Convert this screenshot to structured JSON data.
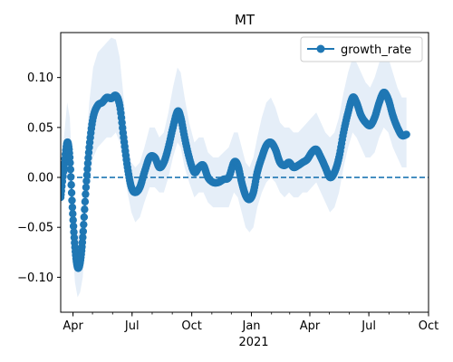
{
  "chart_data": {
    "type": "line",
    "title": "MT",
    "xlabel": "2021",
    "ylabel": "",
    "x_ticks_major": [
      "2020-04-01",
      "2020-07-01",
      "2020-10-01",
      "2021-01-01",
      "2021-04-01",
      "2021-07-01",
      "2021-10-01"
    ],
    "x_tick_labels": [
      "Apr",
      "Jul",
      "Oct",
      "Jan",
      "Apr",
      "Jul",
      "Oct"
    ],
    "x_year_label": "2021",
    "xlim": [
      "2020-03-13",
      "2021-10-01"
    ],
    "ylim": [
      -0.135,
      0.145
    ],
    "y_ticks": [
      -0.1,
      -0.05,
      0.0,
      0.05,
      0.1
    ],
    "y_tick_labels": [
      "−0.10",
      "−0.05",
      "0.00",
      "0.05",
      "0.10"
    ],
    "reference_line": {
      "y": 0.0,
      "style": "dashed"
    },
    "legend": {
      "position": "top-right",
      "entries": [
        "growth_rate"
      ]
    },
    "grid": false,
    "colors": {
      "line": "#1f77b4",
      "band": "#dce8f5"
    },
    "series": [
      {
        "name": "growth_rate",
        "marker": "circle",
        "points": [
          {
            "x": "2020-03-13",
            "y": -0.02,
            "lo": -0.03,
            "hi": -0.005
          },
          {
            "x": "2020-03-18",
            "y": 0.01,
            "lo": -0.01,
            "hi": 0.04
          },
          {
            "x": "2020-03-23",
            "y": 0.035,
            "lo": 0.0,
            "hi": 0.075
          },
          {
            "x": "2020-03-27",
            "y": 0.02,
            "lo": -0.015,
            "hi": 0.06
          },
          {
            "x": "2020-03-31",
            "y": -0.03,
            "lo": -0.065,
            "hi": 0.005
          },
          {
            "x": "2020-04-04",
            "y": -0.07,
            "lo": -0.105,
            "hi": -0.035
          },
          {
            "x": "2020-04-08",
            "y": -0.09,
            "lo": -0.12,
            "hi": -0.06
          },
          {
            "x": "2020-04-12",
            "y": -0.085,
            "lo": -0.115,
            "hi": -0.05
          },
          {
            "x": "2020-04-16",
            "y": -0.06,
            "lo": -0.1,
            "hi": -0.02
          },
          {
            "x": "2020-04-21",
            "y": -0.01,
            "lo": -0.05,
            "hi": 0.03
          },
          {
            "x": "2020-04-26",
            "y": 0.03,
            "lo": -0.01,
            "hi": 0.075
          },
          {
            "x": "2020-05-02",
            "y": 0.06,
            "lo": 0.02,
            "hi": 0.11
          },
          {
            "x": "2020-05-09",
            "y": 0.072,
            "lo": 0.03,
            "hi": 0.125
          },
          {
            "x": "2020-05-16",
            "y": 0.075,
            "lo": 0.035,
            "hi": 0.13
          },
          {
            "x": "2020-05-23",
            "y": 0.08,
            "lo": 0.04,
            "hi": 0.135
          },
          {
            "x": "2020-05-30",
            "y": 0.079,
            "lo": 0.04,
            "hi": 0.14
          },
          {
            "x": "2020-06-06",
            "y": 0.082,
            "lo": 0.045,
            "hi": 0.138
          },
          {
            "x": "2020-06-12",
            "y": 0.072,
            "lo": 0.035,
            "hi": 0.12
          },
          {
            "x": "2020-06-18",
            "y": 0.04,
            "lo": 0.01,
            "hi": 0.08
          },
          {
            "x": "2020-06-24",
            "y": 0.01,
            "lo": -0.015,
            "hi": 0.04
          },
          {
            "x": "2020-06-30",
            "y": -0.01,
            "lo": -0.035,
            "hi": 0.015
          },
          {
            "x": "2020-07-06",
            "y": -0.015,
            "lo": -0.045,
            "hi": 0.01
          },
          {
            "x": "2020-07-13",
            "y": -0.01,
            "lo": -0.04,
            "hi": 0.015
          },
          {
            "x": "2020-07-20",
            "y": 0.005,
            "lo": -0.025,
            "hi": 0.03
          },
          {
            "x": "2020-07-28",
            "y": 0.02,
            "lo": -0.01,
            "hi": 0.05
          },
          {
            "x": "2020-08-05",
            "y": 0.02,
            "lo": -0.01,
            "hi": 0.05
          },
          {
            "x": "2020-08-12",
            "y": 0.01,
            "lo": -0.015,
            "hi": 0.04
          },
          {
            "x": "2020-08-19",
            "y": 0.015,
            "lo": -0.015,
            "hi": 0.045
          },
          {
            "x": "2020-08-26",
            "y": 0.03,
            "lo": 0.0,
            "hi": 0.065
          },
          {
            "x": "2020-09-02",
            "y": 0.05,
            "lo": 0.02,
            "hi": 0.09
          },
          {
            "x": "2020-09-09",
            "y": 0.066,
            "lo": 0.035,
            "hi": 0.11
          },
          {
            "x": "2020-09-14",
            "y": 0.06,
            "lo": 0.03,
            "hi": 0.105
          },
          {
            "x": "2020-09-20",
            "y": 0.04,
            "lo": 0.01,
            "hi": 0.08
          },
          {
            "x": "2020-09-27",
            "y": 0.02,
            "lo": -0.005,
            "hi": 0.055
          },
          {
            "x": "2020-10-05",
            "y": 0.005,
            "lo": -0.02,
            "hi": 0.035
          },
          {
            "x": "2020-10-12",
            "y": 0.01,
            "lo": -0.015,
            "hi": 0.04
          },
          {
            "x": "2020-10-19",
            "y": 0.012,
            "lo": -0.015,
            "hi": 0.04
          },
          {
            "x": "2020-10-26",
            "y": 0.0,
            "lo": -0.025,
            "hi": 0.025
          },
          {
            "x": "2020-11-03",
            "y": -0.005,
            "lo": -0.03,
            "hi": 0.02
          },
          {
            "x": "2020-11-11",
            "y": -0.005,
            "lo": -0.03,
            "hi": 0.02
          },
          {
            "x": "2020-11-19",
            "y": -0.002,
            "lo": -0.03,
            "hi": 0.025
          },
          {
            "x": "2020-11-27",
            "y": 0.0,
            "lo": -0.03,
            "hi": 0.03
          },
          {
            "x": "2020-12-05",
            "y": 0.015,
            "lo": -0.015,
            "hi": 0.045
          },
          {
            "x": "2020-12-11",
            "y": 0.012,
            "lo": -0.02,
            "hi": 0.045
          },
          {
            "x": "2020-12-17",
            "y": -0.005,
            "lo": -0.035,
            "hi": 0.03
          },
          {
            "x": "2020-12-23",
            "y": -0.018,
            "lo": -0.05,
            "hi": 0.015
          },
          {
            "x": "2020-12-29",
            "y": -0.022,
            "lo": -0.055,
            "hi": 0.01
          },
          {
            "x": "2021-01-04",
            "y": -0.015,
            "lo": -0.05,
            "hi": 0.02
          },
          {
            "x": "2021-01-10",
            "y": 0.005,
            "lo": -0.03,
            "hi": 0.04
          },
          {
            "x": "2021-01-17",
            "y": 0.02,
            "lo": -0.015,
            "hi": 0.06
          },
          {
            "x": "2021-01-24",
            "y": 0.032,
            "lo": -0.005,
            "hi": 0.075
          },
          {
            "x": "2021-01-31",
            "y": 0.035,
            "lo": 0.0,
            "hi": 0.08
          },
          {
            "x": "2021-02-07",
            "y": 0.028,
            "lo": -0.005,
            "hi": 0.07
          },
          {
            "x": "2021-02-14",
            "y": 0.015,
            "lo": -0.015,
            "hi": 0.055
          },
          {
            "x": "2021-02-21",
            "y": 0.012,
            "lo": -0.02,
            "hi": 0.05
          },
          {
            "x": "2021-02-28",
            "y": 0.015,
            "lo": -0.015,
            "hi": 0.05
          },
          {
            "x": "2021-03-07",
            "y": 0.01,
            "lo": -0.02,
            "hi": 0.045
          },
          {
            "x": "2021-03-14",
            "y": 0.012,
            "lo": -0.02,
            "hi": 0.045
          },
          {
            "x": "2021-03-21",
            "y": 0.015,
            "lo": -0.015,
            "hi": 0.05
          },
          {
            "x": "2021-03-28",
            "y": 0.018,
            "lo": -0.015,
            "hi": 0.055
          },
          {
            "x": "2021-04-04",
            "y": 0.025,
            "lo": -0.01,
            "hi": 0.06
          },
          {
            "x": "2021-04-11",
            "y": 0.028,
            "lo": -0.005,
            "hi": 0.065
          },
          {
            "x": "2021-04-18",
            "y": 0.02,
            "lo": -0.015,
            "hi": 0.055
          },
          {
            "x": "2021-04-25",
            "y": 0.01,
            "lo": -0.025,
            "hi": 0.045
          },
          {
            "x": "2021-05-02",
            "y": 0.0,
            "lo": -0.035,
            "hi": 0.04
          },
          {
            "x": "2021-05-09",
            "y": 0.005,
            "lo": -0.03,
            "hi": 0.045
          },
          {
            "x": "2021-05-16",
            "y": 0.02,
            "lo": -0.015,
            "hi": 0.06
          },
          {
            "x": "2021-05-23",
            "y": 0.045,
            "lo": 0.01,
            "hi": 0.085
          },
          {
            "x": "2021-05-30",
            "y": 0.065,
            "lo": 0.03,
            "hi": 0.105
          },
          {
            "x": "2021-06-06",
            "y": 0.08,
            "lo": 0.045,
            "hi": 0.12
          },
          {
            "x": "2021-06-12",
            "y": 0.075,
            "lo": 0.04,
            "hi": 0.115
          },
          {
            "x": "2021-06-19",
            "y": 0.062,
            "lo": 0.03,
            "hi": 0.105
          },
          {
            "x": "2021-06-26",
            "y": 0.055,
            "lo": 0.02,
            "hi": 0.095
          },
          {
            "x": "2021-07-03",
            "y": 0.052,
            "lo": 0.02,
            "hi": 0.09
          },
          {
            "x": "2021-07-10",
            "y": 0.06,
            "lo": 0.025,
            "hi": 0.1
          },
          {
            "x": "2021-07-17",
            "y": 0.075,
            "lo": 0.04,
            "hi": 0.115
          },
          {
            "x": "2021-07-24",
            "y": 0.085,
            "lo": 0.05,
            "hi": 0.125
          },
          {
            "x": "2021-07-31",
            "y": 0.078,
            "lo": 0.045,
            "hi": 0.12
          },
          {
            "x": "2021-08-07",
            "y": 0.062,
            "lo": 0.03,
            "hi": 0.105
          },
          {
            "x": "2021-08-14",
            "y": 0.05,
            "lo": 0.02,
            "hi": 0.09
          },
          {
            "x": "2021-08-21",
            "y": 0.042,
            "lo": 0.01,
            "hi": 0.08
          },
          {
            "x": "2021-08-28",
            "y": 0.043,
            "lo": 0.01,
            "hi": 0.08
          }
        ]
      }
    ]
  }
}
